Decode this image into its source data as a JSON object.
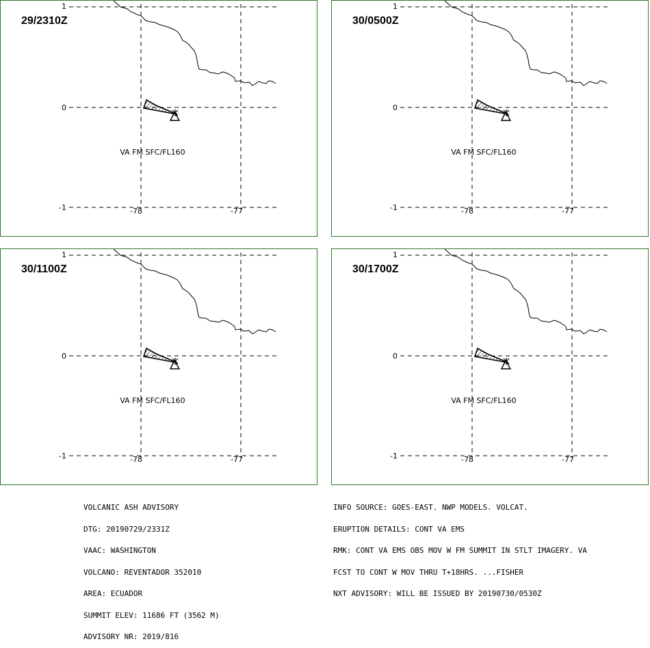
{
  "panels": [
    {
      "time": "29/2310Z",
      "label": "VA FM SFC/FL160"
    },
    {
      "time": "30/0500Z",
      "label": "VA FM SFC/FL160"
    },
    {
      "time": "30/1100Z",
      "label": "VA FM SFC/FL160"
    },
    {
      "time": "30/1700Z",
      "label": "VA FM SFC/FL160"
    }
  ],
  "axis": {
    "lat_ticks": [
      "1",
      "0",
      "-1"
    ],
    "lon_ticks": [
      "-78",
      "-77"
    ]
  },
  "colors": {
    "panel_border": "#2a7a2a",
    "lines": "#000000",
    "background": "#ffffff"
  },
  "advisory_left": [
    "VOLCANIC ASH ADVISORY",
    "DTG: 20190729/2331Z",
    "VAAC: WASHINGTON",
    "VOLCANO: REVENTADOR 352010",
    "AREA: ECUADOR",
    "SUMMIT ELEV: 11686 FT (3562 M)",
    "ADVISORY NR: 2019/816"
  ],
  "advisory_right": [
    "INFO SOURCE: GOES-EAST. NWP MODELS. VOLCAT.",
    "ERUPTION DETAILS: CONT VA EMS",
    "RMK: CONT VA EMS OBS MOV W FM SUMMIT IN STLT IMAGERY. VA",
    "FCST TO CONT W MOV THRU T+18HRS. ...FISHER",
    "NXT ADVISORY: WILL BE ISSUED BY 20190730/0530Z"
  ]
}
